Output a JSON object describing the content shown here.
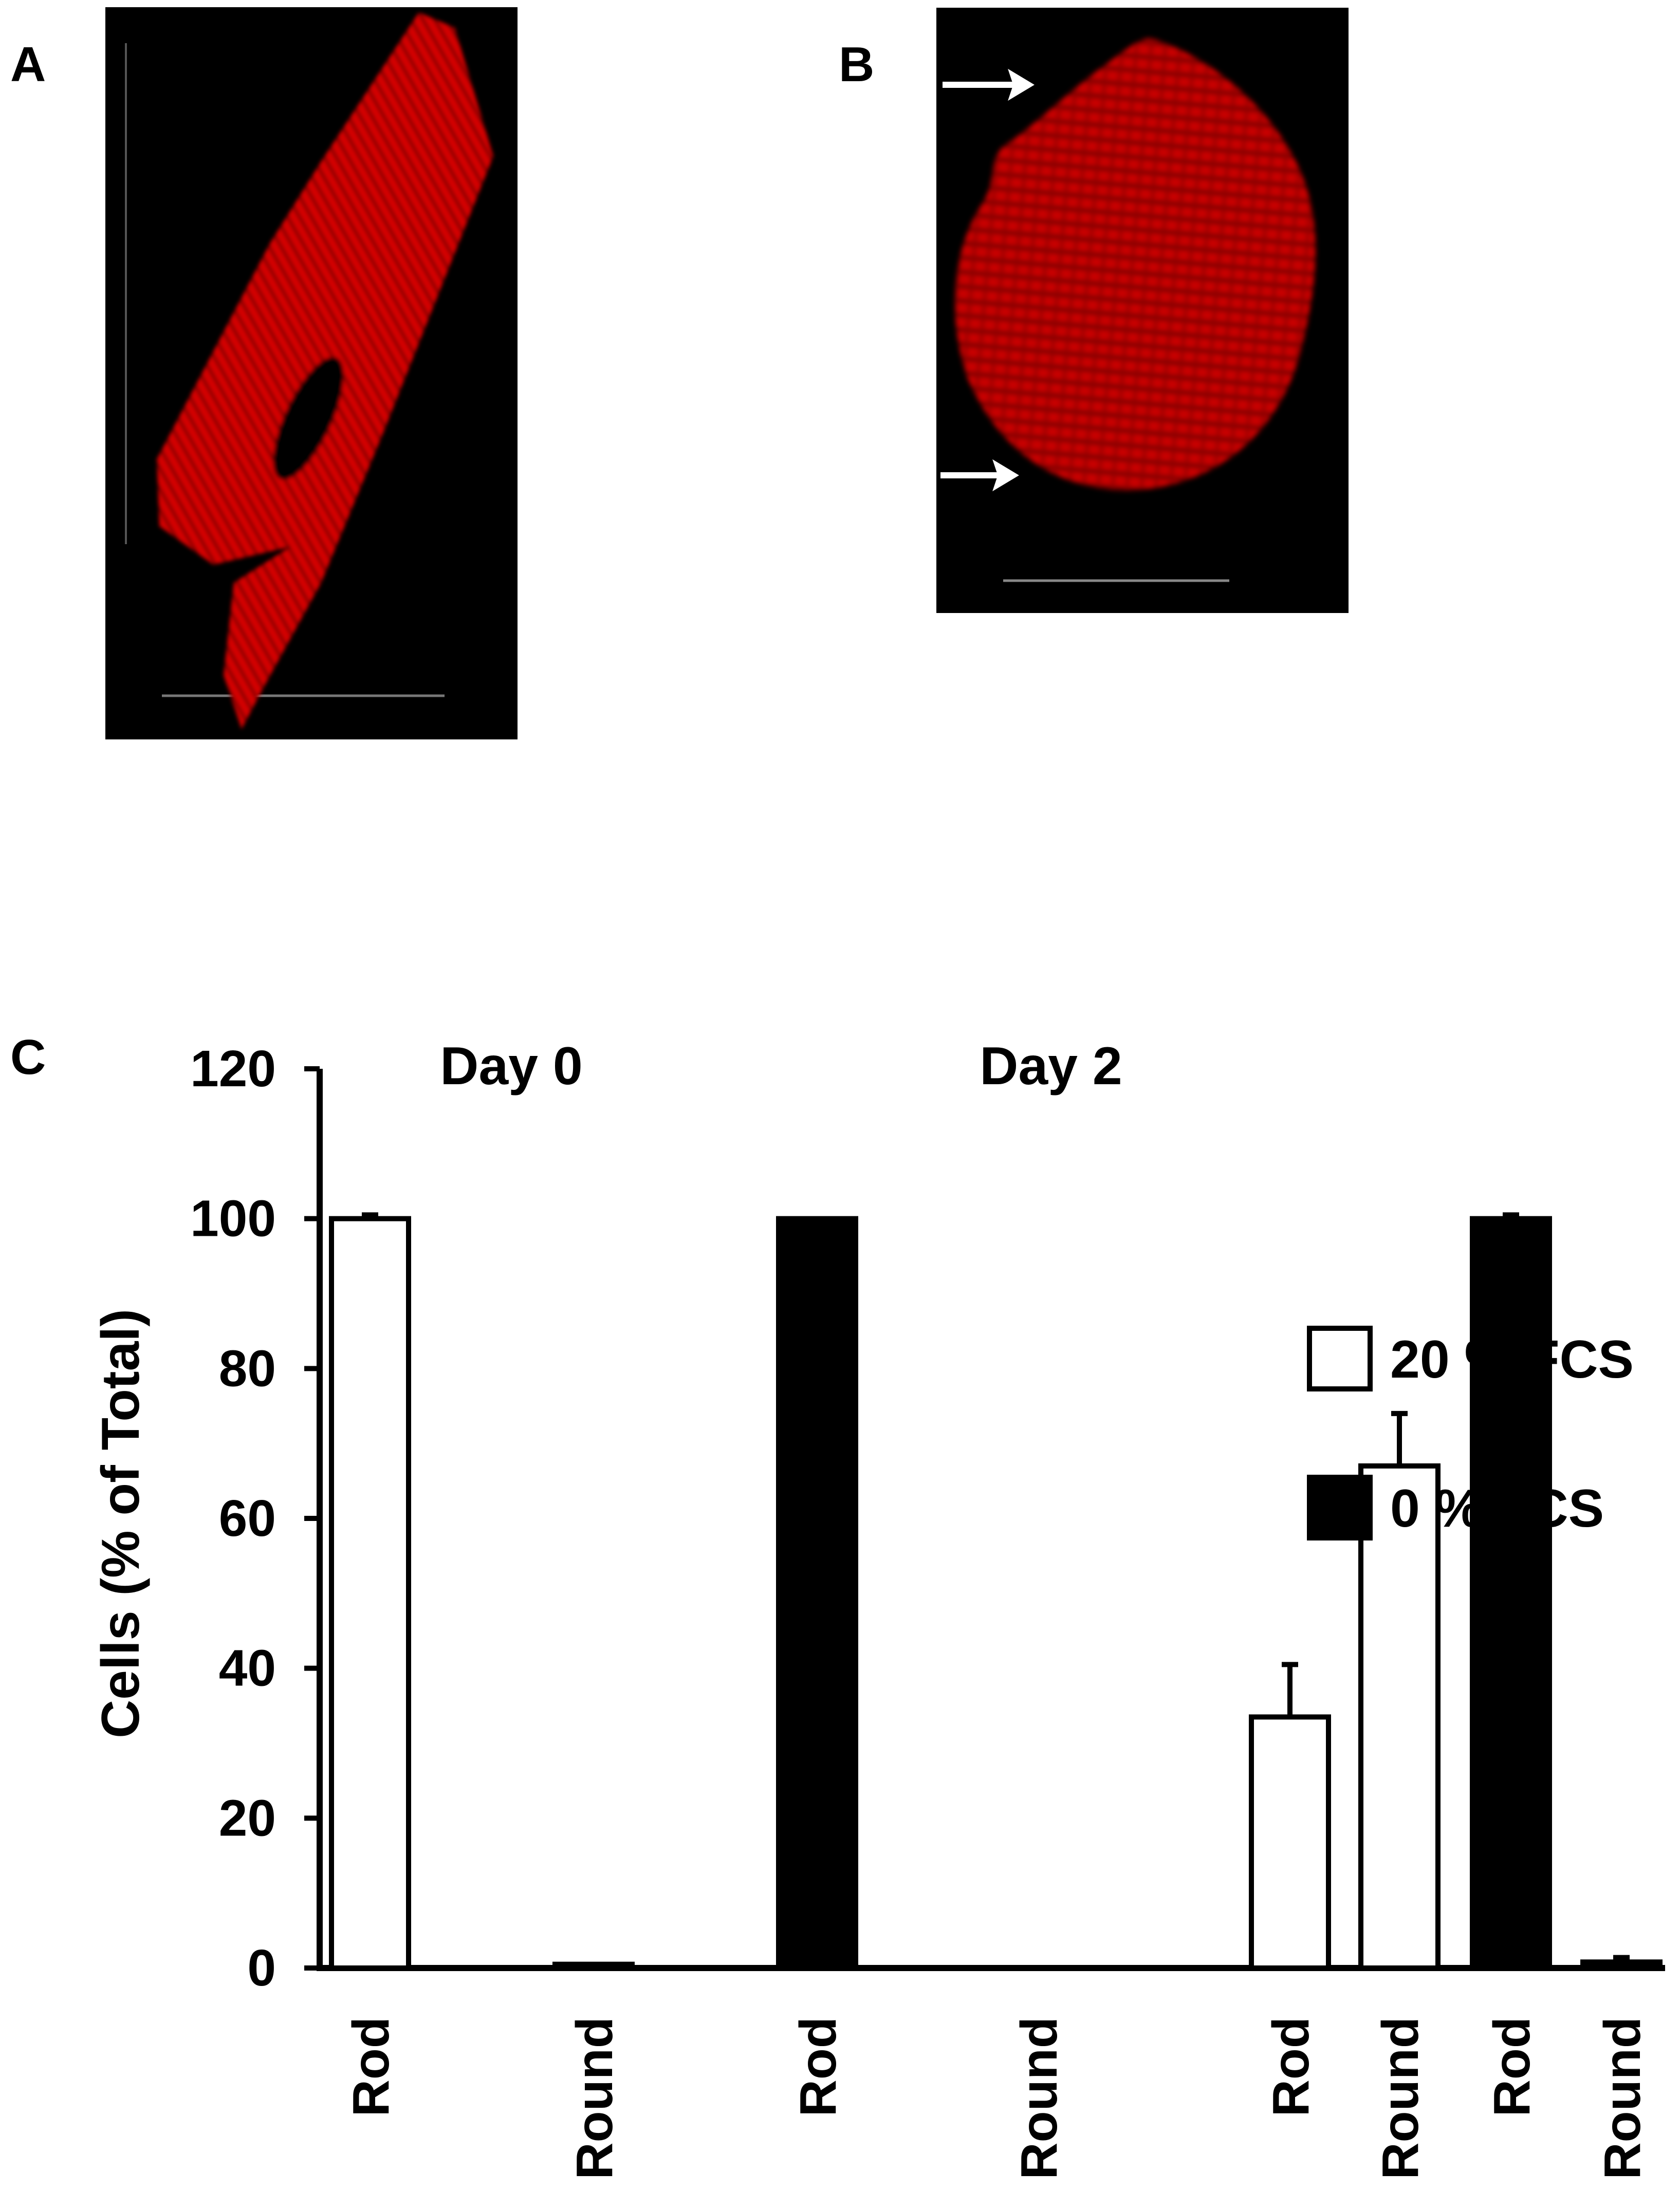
{
  "panels": {
    "a": {
      "label": "A"
    },
    "b": {
      "label": "B"
    },
    "c": {
      "label": "C"
    }
  },
  "colors": {
    "fluorescence": "#e00000",
    "micrograph_background": "#000000",
    "bar_20_fill": "#ffffff",
    "bar_0_fill": "#000000"
  },
  "chart_data": {
    "type": "bar",
    "ylabel": "Cells (% of Total)",
    "ylim": [
      0,
      120
    ],
    "yticks": [
      0,
      20,
      40,
      60,
      80,
      100,
      120
    ],
    "groups": [
      {
        "label": "Day 0",
        "categories": [
          "Rod",
          "Round",
          "Rod",
          "Round"
        ]
      },
      {
        "label": "Day 2",
        "categories": [
          "Rod",
          "Round",
          "Rod",
          "Round"
        ]
      }
    ],
    "series": [
      {
        "name": "20 % FCS",
        "fill": "white",
        "values": {
          "Day 0": [
            100,
            0.5
          ],
          "Day 2": [
            33.5,
            67
          ]
        },
        "errors": {
          "Day 0": [
            0.5,
            0
          ],
          "Day 2": [
            7,
            7
          ]
        }
      },
      {
        "name": "0 % FCS",
        "fill": "black",
        "values": {
          "Day 0": [
            100,
            0
          ],
          "Day 2": [
            100,
            0.8
          ]
        },
        "errors": {
          "Day 0": [
            0,
            0
          ],
          "Day 2": [
            0.5,
            0.6
          ]
        }
      }
    ],
    "bar_order": [
      {
        "group": "Day 0",
        "category": "Rod",
        "series": "20 % FCS",
        "value": 100,
        "error": 0.5
      },
      {
        "group": "Day 0",
        "category": "Round",
        "series": "20 % FCS",
        "value": 0.5,
        "error": 0
      },
      {
        "group": "Day 0",
        "category": "Rod",
        "series": "0 % FCS",
        "value": 100,
        "error": 0
      },
      {
        "group": "Day 0",
        "category": "Round",
        "series": "0 % FCS",
        "value": 0,
        "error": 0
      },
      {
        "group": "Day 2",
        "category": "Rod",
        "series": "20 % FCS",
        "value": 33.5,
        "error": 7
      },
      {
        "group": "Day 2",
        "category": "Round",
        "series": "20 % FCS",
        "value": 67,
        "error": 7
      },
      {
        "group": "Day 2",
        "category": "Rod",
        "series": "0 % FCS",
        "value": 100,
        "error": 0.5
      },
      {
        "group": "Day 2",
        "category": "Round",
        "series": "0 % FCS",
        "value": 0.8,
        "error": 0.6
      }
    ],
    "legend": [
      {
        "label": "20 % FCS",
        "fill": "white"
      },
      {
        "label": "0 % FCS",
        "fill": "black"
      }
    ],
    "legend_position": "right",
    "grid": false
  }
}
